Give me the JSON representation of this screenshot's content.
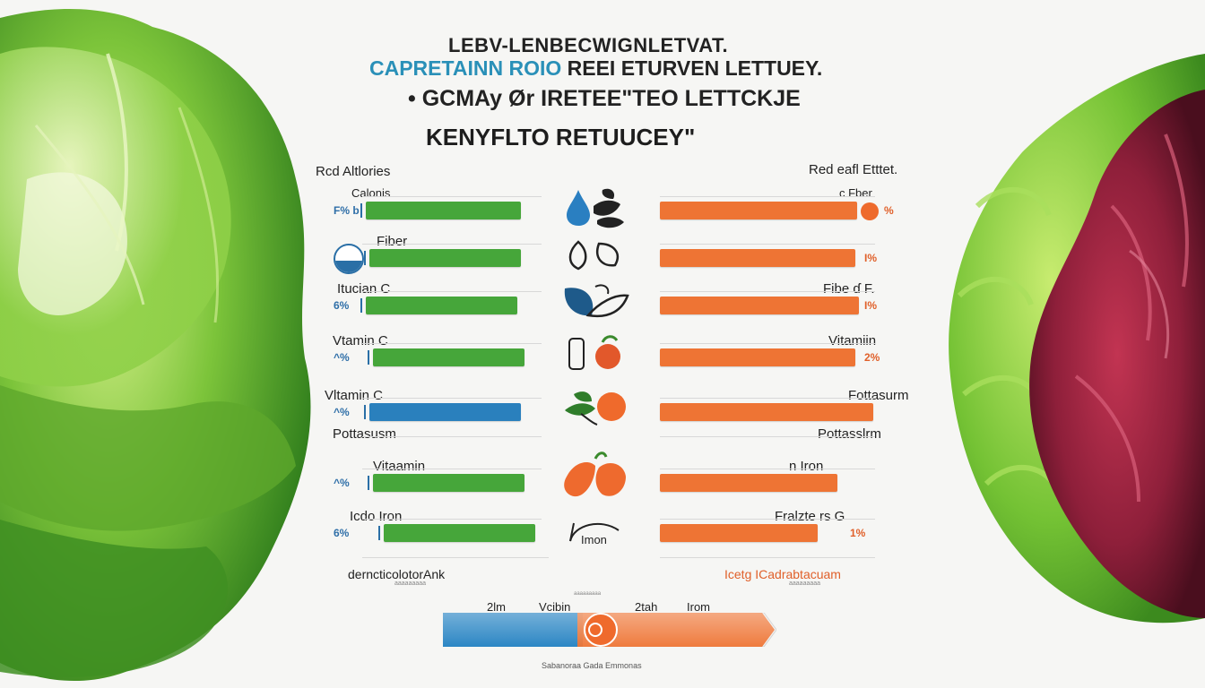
{
  "titles": {
    "line1": "LEBV-LENBECWIGNLETVAT.",
    "line2a": "CAPRETAINN ROIO",
    "line2b": "REEI ETURVEN LETTUEY.",
    "line3": "• GCMAy Ør IRETEE\"TEO LETTCKJE",
    "line4": "KENYFLTO RETUUCEY\""
  },
  "header_left": "Rcd Altlories",
  "header_right": "Red eafl Etttet.",
  "colors": {
    "green_bar": "#46a63a",
    "blue_bar": "#2a80bd",
    "orange_bar": "#ee7434",
    "pct_blue": "#2f6fa8",
    "pct_orange": "#e0602a"
  },
  "chart_data": {
    "type": "bar",
    "rows": [
      {
        "left_label": "Calonis",
        "left_pct": "F% b",
        "left_value": 0.92,
        "left_color": "green",
        "left_marker": "",
        "right_label": "c Fber",
        "right_pct": "%",
        "right_value": 1.0
      },
      {
        "left_label": "Fiber",
        "left_pct": "",
        "left_value": 0.9,
        "left_color": "green",
        "left_marker": "circle",
        "right_label": "",
        "right_pct": "I%",
        "right_value": 1.0
      },
      {
        "left_label": "Itucian C",
        "left_pct": "6%",
        "left_value": 0.9,
        "left_color": "green",
        "left_marker": "",
        "right_label": "Fibe ɗ F.",
        "right_pct": "I%",
        "right_value": 1.0
      },
      {
        "left_label": "Vtamin C",
        "left_pct": "^%",
        "left_value": 0.9,
        "left_color": "green",
        "left_marker": "",
        "right_label": "Vitamiin",
        "right_pct": "2%",
        "right_value": 1.0
      },
      {
        "left_label": "Vltamin C",
        "left_pct": "^%",
        "left_value": 0.9,
        "left_color": "blue",
        "left_marker": "",
        "right_label": "Fottasurm",
        "right_pct": "",
        "right_value": 1.0
      },
      {
        "left_label": "Pottasusm",
        "left_pct": "",
        "left_value": null,
        "left_color": "none",
        "left_marker": "",
        "right_label": "Pottasslrm",
        "right_pct": "",
        "right_value": null
      },
      {
        "left_label": "Vitaamin",
        "left_pct": "^%",
        "left_value": 0.9,
        "left_color": "green",
        "left_marker": "",
        "right_label": "n Iron",
        "right_pct": "",
        "right_value": 0.82
      },
      {
        "left_label": "Icdo Iron",
        "left_pct": "6%",
        "left_value": 0.9,
        "left_color": "green",
        "left_marker": "",
        "right_label": "Fralzte rs G",
        "right_pct": "1%",
        "right_value": 0.8
      }
    ],
    "icons": [
      "water-drop-leaf-icon",
      "seeds-icon",
      "leaf-bowl-icon",
      "carrot-tomato-icon",
      "herb-tomato-icon",
      "peppers-icon",
      "iron-icon"
    ],
    "icon_text": "Imon"
  },
  "footer": {
    "left": "derncticolotorAnk",
    "left_sub": "aaaaaaaaa",
    "right": "Icetg ICadrabtacuam",
    "right_sub": "aaaaaaaaa"
  },
  "scale": {
    "labels": [
      "2lm",
      "Vcibin",
      "2tah",
      "Irom"
    ],
    "top_small": "aaaaaaaaa",
    "fill_value": 0.42
  },
  "caption": "Sabanoraa Gada Emmonas"
}
